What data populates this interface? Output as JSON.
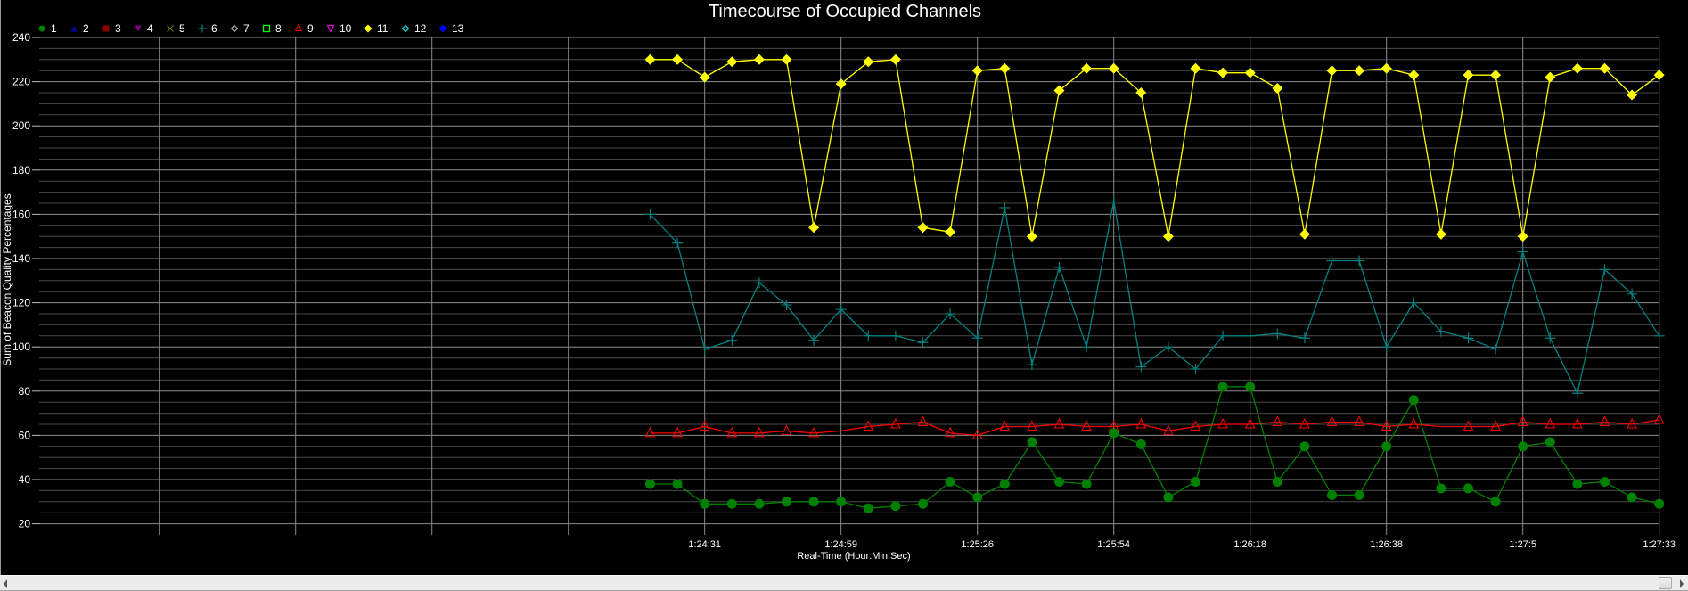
{
  "chart_data": {
    "type": "line",
    "title": "Timecourse of Occupied Channels",
    "xlabel": "Real-Time (Hour:Min:Sec)",
    "ylabel": "Sum of Beacon Quality Percentages",
    "ylim": [
      15,
      240
    ],
    "yticks": [
      20,
      40,
      60,
      80,
      100,
      120,
      140,
      160,
      180,
      200,
      220,
      240
    ],
    "y_minor_step": 5,
    "grid": true,
    "legend_position": "top-left",
    "background": "#000000",
    "x_tick_labels": [
      {
        "index": 2,
        "label": "1:24:31"
      },
      {
        "index": 7,
        "label": "1:24:59"
      },
      {
        "index": 12,
        "label": "1:25:26"
      },
      {
        "index": 17,
        "label": "1:25:54"
      },
      {
        "index": 22,
        "label": "1:26:18"
      },
      {
        "index": 27,
        "label": "1:26:38"
      },
      {
        "index": 32,
        "label": "1:27:5"
      },
      {
        "index": 37,
        "label": "1:27:33"
      }
    ],
    "unlabeled_x_gridlines_before_data": 4,
    "point_count": 38,
    "legend": [
      {
        "name": "1",
        "color": "#008000",
        "marker": "circle"
      },
      {
        "name": "2",
        "color": "#0000a0",
        "marker": "triangle-up"
      },
      {
        "name": "3",
        "color": "#8b0000",
        "marker": "square-filled"
      },
      {
        "name": "4",
        "color": "#800080",
        "marker": "triangle-down"
      },
      {
        "name": "5",
        "color": "#808000",
        "marker": "x"
      },
      {
        "name": "6",
        "color": "#008080",
        "marker": "plus"
      },
      {
        "name": "7",
        "color": "#c0c0c0",
        "marker": "diamond-open"
      },
      {
        "name": "8",
        "color": "#00ff00",
        "marker": "square-open"
      },
      {
        "name": "9",
        "color": "#ff0000",
        "marker": "triangle-up-open"
      },
      {
        "name": "10",
        "color": "#ff00ff",
        "marker": "triangle-down-open"
      },
      {
        "name": "11",
        "color": "#ffff00",
        "marker": "diamond"
      },
      {
        "name": "12",
        "color": "#00ffff",
        "marker": "diamond-open"
      },
      {
        "name": "13",
        "color": "#0000ff",
        "marker": "diamond"
      }
    ],
    "series": [
      {
        "name": "11",
        "color": "#ffff00",
        "marker": "diamond",
        "values": [
          230,
          230,
          222,
          229,
          230,
          230,
          154,
          219,
          229,
          230,
          154,
          152,
          225,
          226,
          150,
          216,
          226,
          226,
          215,
          150,
          226,
          224,
          224,
          217,
          151,
          225,
          225,
          226,
          223,
          151,
          223,
          223,
          150,
          222,
          226,
          226,
          214,
          223
        ]
      },
      {
        "name": "6",
        "color": "#008080",
        "marker": "plus",
        "values": [
          160,
          147,
          99,
          103,
          129,
          119,
          103,
          117,
          105,
          105,
          102,
          115,
          104,
          163,
          92,
          136,
          100,
          166,
          91,
          100,
          90,
          105,
          105,
          106,
          104,
          139,
          139,
          100,
          120,
          107,
          104,
          99,
          143,
          104,
          79,
          135,
          124,
          105
        ]
      },
      {
        "name": "9",
        "color": "#ff0000",
        "marker": "triangle-up-open",
        "values": [
          61,
          61,
          64,
          61,
          61,
          62,
          61,
          62,
          64,
          65,
          66,
          61,
          60,
          64,
          64,
          65,
          64,
          64,
          65,
          62,
          64,
          65,
          65,
          66,
          65,
          66,
          66,
          64,
          65,
          64,
          64,
          64,
          66,
          65,
          65,
          66,
          65,
          67
        ],
        "hidden_markers": [
          7,
          29
        ]
      },
      {
        "name": "1",
        "color": "#008000",
        "marker": "circle",
        "values": [
          38,
          38,
          29,
          29,
          29,
          30,
          30,
          30,
          27,
          28,
          29,
          39,
          32,
          38,
          57,
          39,
          38,
          61,
          56,
          32,
          39,
          82,
          82,
          39,
          55,
          33,
          33,
          55,
          76,
          36,
          36,
          30,
          55,
          57,
          38,
          39,
          32,
          29
        ]
      }
    ]
  },
  "scrollbar": {
    "left_arrow": "scroll-left-arrow",
    "right_arrow": "scroll-right-arrow",
    "thumb_position": "end"
  }
}
